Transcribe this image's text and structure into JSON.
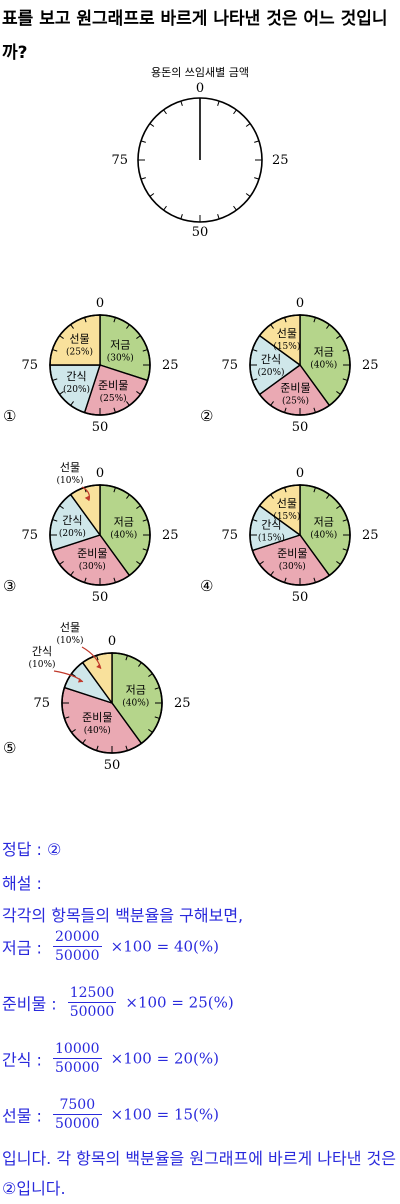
{
  "question": {
    "text": "표를 보고 원그래프로 바르게 나타낸 것은 어느 것입니까?"
  },
  "blank_chart": {
    "title": "용돈의 쓰임새별 금액",
    "tick_labels": [
      "0",
      "25",
      "50",
      "75"
    ]
  },
  "chart_data": [
    {
      "type": "pie",
      "choice": "①",
      "tick_labels": [
        "0",
        "25",
        "50",
        "75"
      ],
      "slices": [
        {
          "name": "저금",
          "value": 30,
          "label": "(30%)",
          "color": "#b5d58b"
        },
        {
          "name": "준비물",
          "value": 25,
          "label": "(25%)",
          "color": "#eaa9b3"
        },
        {
          "name": "간식",
          "value": 20,
          "label": "(20%)",
          "color": "#cfe7ea"
        },
        {
          "name": "선물",
          "value": 25,
          "label": "(25%)",
          "color": "#f9e19c"
        }
      ]
    },
    {
      "type": "pie",
      "choice": "②",
      "tick_labels": [
        "0",
        "25",
        "50",
        "75"
      ],
      "slices": [
        {
          "name": "저금",
          "value": 40,
          "label": "(40%)",
          "color": "#b5d58b"
        },
        {
          "name": "준비물",
          "value": 25,
          "label": "(25%)",
          "color": "#eaa9b3"
        },
        {
          "name": "간식",
          "value": 20,
          "label": "(20%)",
          "color": "#cfe7ea"
        },
        {
          "name": "선물",
          "value": 15,
          "label": "(15%)",
          "color": "#f9e19c"
        }
      ]
    },
    {
      "type": "pie",
      "choice": "③",
      "tick_labels": [
        "0",
        "25",
        "50",
        "75"
      ],
      "slices": [
        {
          "name": "저금",
          "value": 40,
          "label": "(40%)",
          "color": "#b5d58b"
        },
        {
          "name": "준비물",
          "value": 30,
          "label": "(30%)",
          "color": "#eaa9b3"
        },
        {
          "name": "간식",
          "value": 20,
          "label": "(20%)",
          "color": "#cfe7ea"
        },
        {
          "name": "선물",
          "value": 10,
          "label": "(10%)",
          "color": "#f9e19c"
        }
      ]
    },
    {
      "type": "pie",
      "choice": "④",
      "tick_labels": [
        "0",
        "25",
        "50",
        "75"
      ],
      "slices": [
        {
          "name": "저금",
          "value": 40,
          "label": "(40%)",
          "color": "#b5d58b"
        },
        {
          "name": "준비물",
          "value": 30,
          "label": "(30%)",
          "color": "#eaa9b3"
        },
        {
          "name": "간식",
          "value": 15,
          "label": "(15%)",
          "color": "#cfe7ea"
        },
        {
          "name": "선물",
          "value": 15,
          "label": "(15%)",
          "color": "#f9e19c"
        }
      ]
    },
    {
      "type": "pie",
      "choice": "⑤",
      "tick_labels": [
        "0",
        "25",
        "50",
        "75"
      ],
      "slices": [
        {
          "name": "저금",
          "value": 40,
          "label": "(40%)",
          "color": "#b5d58b"
        },
        {
          "name": "준비물",
          "value": 40,
          "label": "(40%)",
          "color": "#eaa9b3"
        },
        {
          "name": "간식",
          "value": 10,
          "label": "(10%)",
          "color": "#cfe7ea"
        },
        {
          "name": "선물",
          "value": 10,
          "label": "(10%)",
          "color": "#f9e19c"
        }
      ]
    }
  ],
  "solution": {
    "answer_label": "정답 :",
    "answer_value": "②",
    "explain_label": "해설 :",
    "intro": "각각의 항목들의 백분율을 구해보면,",
    "rows": [
      {
        "label": "저금 :",
        "num": "20000",
        "den": "50000",
        "expr": "×100 = 40(%)"
      },
      {
        "label": "준비물 :",
        "num": "12500",
        "den": "50000",
        "expr": "×100 = 25(%)"
      },
      {
        "label": "간식 :",
        "num": "10000",
        "den": "50000",
        "expr": "×100 = 20(%)"
      },
      {
        "label": "선물 :",
        "num": "7500",
        "den": "50000",
        "expr": "×100 = 15(%)"
      }
    ],
    "conclusion": "입니다. 각 항목의 백분율을 원그래프에 바르게 나타낸 것은 ②입니다."
  }
}
